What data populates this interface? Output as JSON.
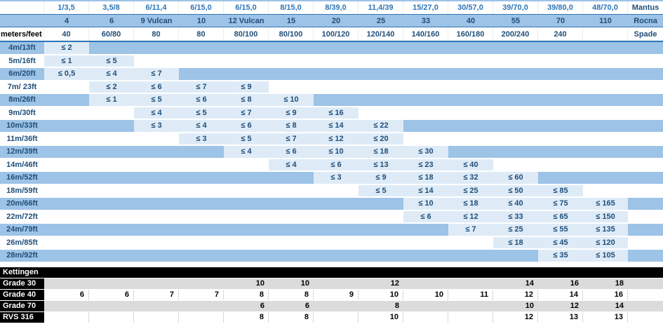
{
  "colors": {
    "band_blue": "#9DC3E6",
    "value_cell_blue": "#DEEBF7",
    "border_blue": "#2E75B6",
    "text_navy": "#1F4E79",
    "text_bright_blue": "#2E75B6",
    "chain_row_gray": "#DBDBDB",
    "gridline_gray": "#D9D9D9",
    "chain_label_bg": "#000000"
  },
  "header": {
    "unit_label": "meters/feet",
    "brands": [
      "Mantus",
      "Rocna",
      "Spade"
    ],
    "anchor_weights": [
      "1/3,5",
      "3,5/8",
      "6/11,4",
      "6/15,0",
      "6/15,0",
      "8/15,0",
      "8/39,0",
      "11,4/39",
      "15/27,0",
      "30/57,0",
      "39/70,0",
      "39/80,0",
      "48/70,0"
    ],
    "anchor_models": [
      "4",
      "6",
      "9 Vulcan",
      "10",
      "12 Vulcan",
      "15",
      "20",
      "25",
      "33",
      "40",
      "55",
      "70",
      "110"
    ],
    "rode_lengths": [
      "40",
      "60/80",
      "80",
      "80",
      "80/100",
      "80/100",
      "100/120",
      "120/140",
      "140/160",
      "160/180",
      "200/240",
      "240",
      ""
    ]
  },
  "boat_rows": [
    {
      "label": "4m/13ft",
      "cells": [
        "≤ 2",
        "",
        "",
        "",
        "",
        "",
        "",
        "",
        "",
        "",
        "",
        "",
        ""
      ]
    },
    {
      "label": "5m/16ft",
      "cells": [
        "≤ 1",
        "≤ 5",
        "",
        "",
        "",
        "",
        "",
        "",
        "",
        "",
        "",
        "",
        ""
      ]
    },
    {
      "label": "6m/20ft",
      "cells": [
        "≤ 0,5",
        "≤ 4",
        "≤ 7",
        "",
        "",
        "",
        "",
        "",
        "",
        "",
        "",
        "",
        ""
      ]
    },
    {
      "label": "7m/ 23ft",
      "cells": [
        "",
        "≤ 2",
        "≤ 6",
        "≤ 7",
        "≤ 9",
        "",
        "",
        "",
        "",
        "",
        "",
        "",
        ""
      ]
    },
    {
      "label": "8m/26ft",
      "cells": [
        "",
        "≤ 1",
        "≤ 5",
        "≤ 6",
        "≤ 8",
        "≤ 10",
        "",
        "",
        "",
        "",
        "",
        "",
        ""
      ]
    },
    {
      "label": "9m/30ft",
      "cells": [
        "",
        "",
        "≤ 4",
        "≤ 5",
        "≤ 7",
        "≤ 9",
        "≤ 16",
        "",
        "",
        "",
        "",
        "",
        ""
      ]
    },
    {
      "label": "10m/33ft",
      "cells": [
        "",
        "",
        "≤ 3",
        "≤ 4",
        "≤ 6",
        "≤ 8",
        "≤ 14",
        "≤ 22",
        "",
        "",
        "",
        "",
        ""
      ]
    },
    {
      "label": "11m/36ft",
      "cells": [
        "",
        "",
        "",
        "≤ 3",
        "≤ 5",
        "≤ 7",
        "≤ 12",
        "≤ 20",
        "",
        "",
        "",
        "",
        ""
      ]
    },
    {
      "label": "12m/39ft",
      "cells": [
        "",
        "",
        "",
        "",
        "≤ 4",
        "≤ 6",
        "≤ 10",
        "≤ 18",
        "≤ 30",
        "",
        "",
        "",
        ""
      ]
    },
    {
      "label": "14m/46ft",
      "cells": [
        "",
        "",
        "",
        "",
        "",
        "≤ 4",
        "≤ 6",
        "≤ 13",
        "≤ 23",
        "≤ 40",
        "",
        "",
        ""
      ]
    },
    {
      "label": "16m/52ft",
      "cells": [
        "",
        "",
        "",
        "",
        "",
        "",
        "≤ 3",
        "≤ 9",
        "≤ 18",
        "≤ 32",
        "≤ 60",
        "",
        ""
      ]
    },
    {
      "label": "18m/59ft",
      "cells": [
        "",
        "",
        "",
        "",
        "",
        "",
        "",
        "≤ 5",
        "≤ 14",
        "≤ 25",
        "≤ 50",
        "≤ 85",
        ""
      ]
    },
    {
      "label": "20m/66ft",
      "cells": [
        "",
        "",
        "",
        "",
        "",
        "",
        "",
        "",
        "≤ 10",
        "≤ 18",
        "≤ 40",
        "≤ 75",
        "≤ 165"
      ]
    },
    {
      "label": "22m/72ft",
      "cells": [
        "",
        "",
        "",
        "",
        "",
        "",
        "",
        "",
        "≤ 6",
        "≤ 12",
        "≤ 33",
        "≤ 65",
        "≤ 150"
      ]
    },
    {
      "label": "24m/79ft",
      "cells": [
        "",
        "",
        "",
        "",
        "",
        "",
        "",
        "",
        "",
        "≤ 7",
        "≤ 25",
        "≤ 55",
        "≤ 135"
      ]
    },
    {
      "label": "26m/85ft",
      "cells": [
        "",
        "",
        "",
        "",
        "",
        "",
        "",
        "",
        "",
        "",
        "≤ 18",
        "≤ 45",
        "≤ 120"
      ]
    },
    {
      "label": "28m/92ft",
      "cells": [
        "",
        "",
        "",
        "",
        "",
        "",
        "",
        "",
        "",
        "",
        "",
        "≤ 35",
        "≤ 105"
      ]
    }
  ],
  "chain": {
    "section_title": "Kettingen",
    "rows": [
      {
        "label": "Grade 30",
        "shade": "gray",
        "cells": [
          "",
          "",
          "",
          "",
          "10",
          "10",
          "",
          "12",
          "",
          "",
          "14",
          "16",
          "18"
        ]
      },
      {
        "label": "Grade 40",
        "shade": "white",
        "cells": [
          "6",
          "6",
          "7",
          "7",
          "8",
          "8",
          "9",
          "10",
          "10",
          "11",
          "12",
          "14",
          "16"
        ]
      },
      {
        "label": "Grade 70",
        "shade": "gray",
        "cells": [
          "",
          "",
          "",
          "",
          "6",
          "6",
          "",
          "8",
          "",
          "",
          "10",
          "12",
          "14"
        ]
      },
      {
        "label": "RVS 316",
        "shade": "white",
        "cells": [
          "",
          "",
          "",
          "",
          "8",
          "8",
          "",
          "10",
          "",
          "",
          "12",
          "13",
          "13"
        ]
      }
    ]
  }
}
